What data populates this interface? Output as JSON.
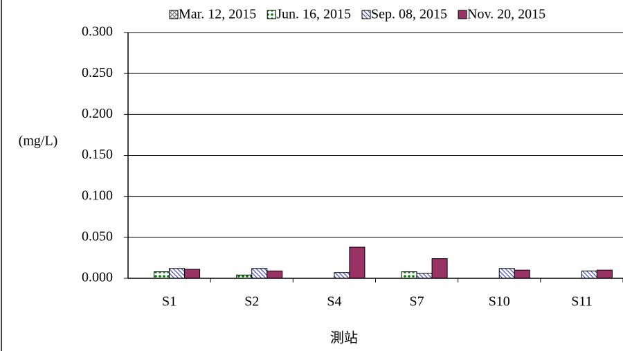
{
  "chart_data": {
    "type": "bar",
    "y_label": "(mg/L)",
    "x_label": "測站",
    "categories": [
      "S1",
      "S2",
      "S4",
      "S7",
      "S10",
      "S11"
    ],
    "series": [
      {
        "name": "Mar. 12, 2015",
        "color": "#808080",
        "values": [
          0,
          0,
          0,
          0,
          0,
          0
        ]
      },
      {
        "name": "Jun. 16, 2015",
        "color": "#008000",
        "values": [
          0.008,
          0.004,
          0,
          0.008,
          0,
          0
        ]
      },
      {
        "name": "Sep. 08, 2015",
        "color": "#4a4ac8",
        "values": [
          0.012,
          0.012,
          0.007,
          0.006,
          0.012,
          0.009
        ]
      },
      {
        "name": "Nov. 20, 2015",
        "color": "#993366",
        "values": [
          0.011,
          0.009,
          0.038,
          0.024,
          0.01,
          0.01
        ]
      }
    ],
    "ylim": [
      0,
      0.3
    ],
    "yticks": [
      {
        "value": 0,
        "label": "0.000"
      },
      {
        "value": 0.05,
        "label": "0.050"
      },
      {
        "value": 0.1,
        "label": "0.100"
      },
      {
        "value": 0.15,
        "label": "0.150"
      },
      {
        "value": 0.2,
        "label": "0.200"
      },
      {
        "value": 0.25,
        "label": "0.250"
      },
      {
        "value": 0.3,
        "label": "0.300"
      }
    ],
    "grid": true,
    "legend": "top"
  }
}
